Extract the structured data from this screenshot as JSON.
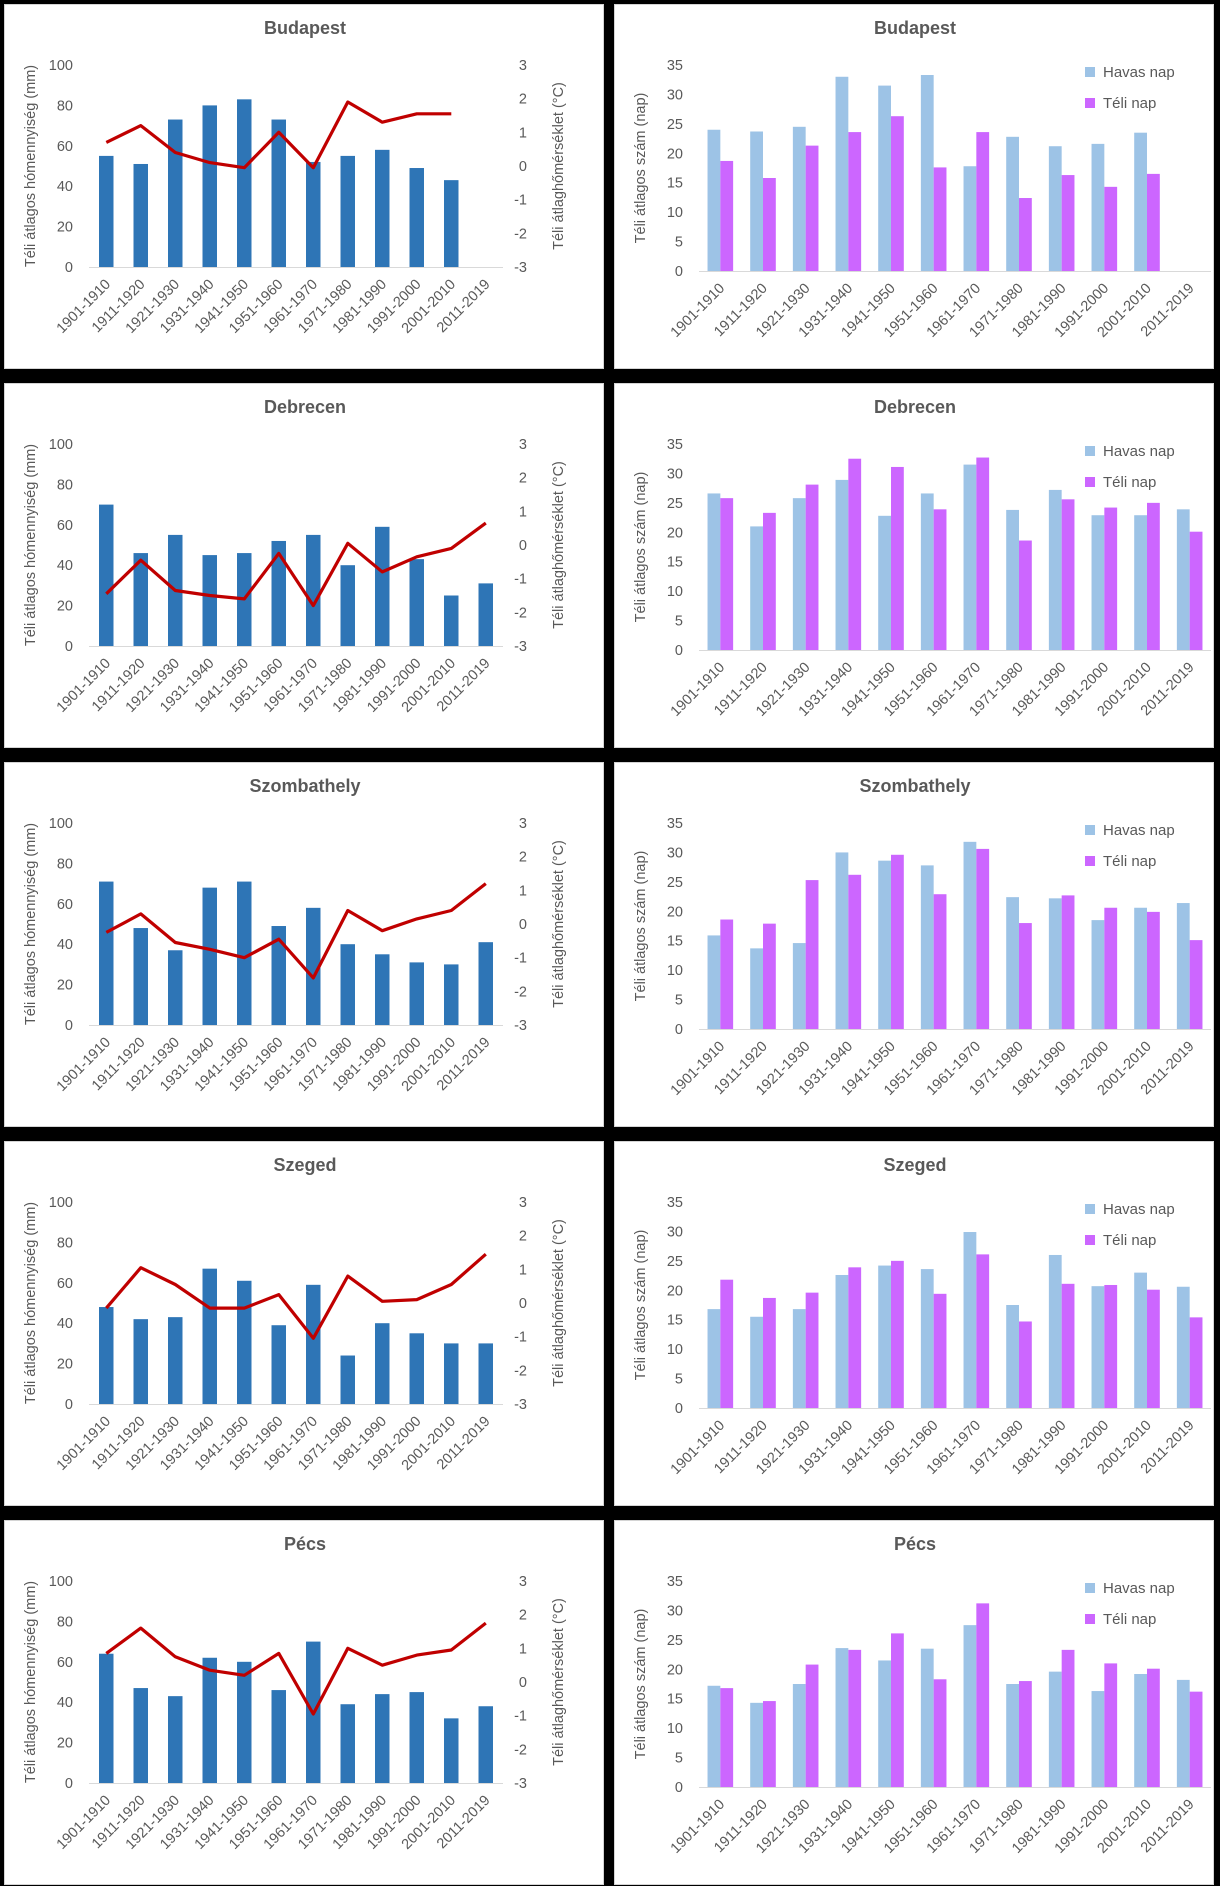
{
  "colors": {
    "snow_bar": "#2e75b6",
    "temp_line": "#c00000",
    "havas_bar": "#9dc3e6",
    "teli_bar": "#cc66ff",
    "text": "#595959",
    "axis": "#d9d9d9"
  },
  "chart_data": [
    {
      "type": "bar",
      "title": "Budapest",
      "categories": [
        "1901-1910",
        "1911-1920",
        "1921-1930",
        "1931-1940",
        "1941-1950",
        "1951-1960",
        "1961-1970",
        "1971-1980",
        "1981-1990",
        "1991-2000",
        "2001-2010",
        "2011-2019"
      ],
      "ylabel": "Téli átlagos hómennyiség (mm)",
      "y2label": "Téli átlaghőmérséklet (°C)",
      "ylim": [
        0,
        100
      ],
      "yticks": [
        "0",
        "20",
        "40",
        "60",
        "80",
        "100"
      ],
      "y2lim": [
        -3,
        3
      ],
      "y2ticks": [
        "-3",
        "-2",
        "-1",
        "0",
        "1",
        "2",
        "3"
      ],
      "series": [
        {
          "kind": "bar",
          "axis": "y",
          "values": [
            55,
            51,
            73,
            80,
            83,
            73,
            52,
            55,
            58,
            49,
            43,
            null
          ]
        },
        {
          "kind": "line",
          "axis": "y2",
          "values": [
            0.7,
            1.2,
            0.4,
            0.1,
            -0.05,
            1.0,
            -0.05,
            1.9,
            1.3,
            1.55,
            1.55,
            null
          ]
        }
      ]
    },
    {
      "type": "bar",
      "title": "Budapest",
      "categories": [
        "1901-1910",
        "1911-1920",
        "1921-1930",
        "1931-1940",
        "1941-1950",
        "1951-1960",
        "1961-1970",
        "1971-1980",
        "1981-1990",
        "1991-2000",
        "2001-2010",
        "2011-2019"
      ],
      "ylabel": "Téli átlagos szám (nap)",
      "ylim": [
        0,
        35
      ],
      "yticks": [
        "0",
        "5",
        "10",
        "15",
        "20",
        "25",
        "30",
        "35"
      ],
      "legend_position": "top-right",
      "series": [
        {
          "name": "Havas nap",
          "values": [
            24,
            23.7,
            24.5,
            33,
            31.5,
            33.3,
            17.8,
            22.8,
            21.2,
            21.6,
            23.5,
            null
          ]
        },
        {
          "name": "Téli nap",
          "values": [
            18.7,
            15.8,
            21.3,
            23.6,
            26.3,
            17.6,
            23.6,
            12.4,
            16.3,
            14.3,
            16.5,
            null
          ]
        }
      ]
    },
    {
      "type": "bar",
      "title": "Debrecen",
      "categories": [
        "1901-1910",
        "1911-1920",
        "1921-1930",
        "1931-1940",
        "1941-1950",
        "1951-1960",
        "1961-1970",
        "1971-1980",
        "1981-1990",
        "1991-2000",
        "2001-2010",
        "2011-2019"
      ],
      "ylabel": "Téli átlagos hómennyiség (mm)",
      "y2label": "Téli átlaghőmérséklet (°C)",
      "ylim": [
        0,
        100
      ],
      "yticks": [
        "0",
        "20",
        "40",
        "60",
        "80",
        "100"
      ],
      "y2lim": [
        -3,
        3
      ],
      "y2ticks": [
        "-3",
        "-2",
        "-1",
        "0",
        "1",
        "2",
        "3"
      ],
      "series": [
        {
          "kind": "bar",
          "axis": "y",
          "values": [
            70,
            46,
            55,
            45,
            46,
            52,
            55,
            40,
            59,
            43,
            25,
            31
          ]
        },
        {
          "kind": "line",
          "axis": "y2",
          "values": [
            -1.45,
            -0.45,
            -1.35,
            -1.5,
            -1.6,
            -0.25,
            -1.8,
            0.05,
            -0.8,
            -0.35,
            -0.1,
            0.65
          ]
        }
      ]
    },
    {
      "type": "bar",
      "title": "Debrecen",
      "categories": [
        "1901-1910",
        "1911-1920",
        "1921-1930",
        "1931-1940",
        "1941-1950",
        "1951-1960",
        "1961-1970",
        "1971-1980",
        "1981-1990",
        "1991-2000",
        "2001-2010",
        "2011-2019"
      ],
      "ylabel": "Téli átlagos szám (nap)",
      "ylim": [
        0,
        35
      ],
      "yticks": [
        "0",
        "5",
        "10",
        "15",
        "20",
        "25",
        "30",
        "35"
      ],
      "legend_position": "top-right",
      "series": [
        {
          "name": "Havas nap",
          "values": [
            26.6,
            21,
            25.8,
            28.9,
            22.8,
            26.6,
            31.5,
            23.8,
            27.2,
            22.9,
            22.9,
            23.9
          ]
        },
        {
          "name": "Téli nap",
          "values": [
            25.8,
            23.3,
            28.1,
            32.5,
            31.1,
            23.9,
            32.7,
            18.6,
            25.6,
            24.2,
            25,
            20.1
          ]
        }
      ]
    },
    {
      "type": "bar",
      "title": "Szombathely",
      "categories": [
        "1901-1910",
        "1911-1920",
        "1921-1930",
        "1931-1940",
        "1941-1950",
        "1951-1960",
        "1961-1970",
        "1971-1980",
        "1981-1990",
        "1991-2000",
        "2001-2010",
        "2011-2019"
      ],
      "ylabel": "Téli átlagos hómennyiség (mm)",
      "y2label": "Téli átlaghőmérséklet (°C)",
      "ylim": [
        0,
        100
      ],
      "yticks": [
        "0",
        "20",
        "40",
        "60",
        "80",
        "100"
      ],
      "y2lim": [
        -3,
        3
      ],
      "y2ticks": [
        "-3",
        "-2",
        "-1",
        "0",
        "1",
        "2",
        "3"
      ],
      "series": [
        {
          "kind": "bar",
          "axis": "y",
          "values": [
            71,
            48,
            37,
            68,
            71,
            49,
            58,
            40,
            35,
            31,
            30,
            41
          ]
        },
        {
          "kind": "line",
          "axis": "y2",
          "values": [
            -0.25,
            0.3,
            -0.55,
            -0.75,
            -1.0,
            -0.45,
            -1.6,
            0.4,
            -0.2,
            0.15,
            0.4,
            1.2
          ]
        }
      ]
    },
    {
      "type": "bar",
      "title": "Szombathely",
      "categories": [
        "1901-1910",
        "1911-1920",
        "1921-1930",
        "1931-1940",
        "1941-1950",
        "1951-1960",
        "1961-1970",
        "1971-1980",
        "1981-1990",
        "1991-2000",
        "2001-2010",
        "2011-2019"
      ],
      "ylabel": "Téli átlagos szám (nap)",
      "ylim": [
        0,
        35
      ],
      "yticks": [
        "0",
        "5",
        "10",
        "15",
        "20",
        "25",
        "30",
        "35"
      ],
      "legend_position": "top-right",
      "series": [
        {
          "name": "Havas nap",
          "values": [
            15.9,
            13.7,
            14.6,
            30,
            28.6,
            27.8,
            31.8,
            22.4,
            22.2,
            18.5,
            20.6,
            21.4
          ]
        },
        {
          "name": "Téli nap",
          "values": [
            18.6,
            17.9,
            25.3,
            26.2,
            29.6,
            22.9,
            30.6,
            18,
            22.7,
            20.6,
            19.9,
            15.1
          ]
        }
      ]
    },
    {
      "type": "bar",
      "title": "Szeged",
      "categories": [
        "1901-1910",
        "1911-1920",
        "1921-1930",
        "1931-1940",
        "1941-1950",
        "1951-1960",
        "1961-1970",
        "1971-1980",
        "1981-1990",
        "1991-2000",
        "2001-2010",
        "2011-2019"
      ],
      "ylabel": "Téli átlagos hómennyiség (mm)",
      "y2label": "Téli átlaghőmérséklet (°C)",
      "ylim": [
        0,
        100
      ],
      "yticks": [
        "0",
        "20",
        "40",
        "60",
        "80",
        "100"
      ],
      "y2lim": [
        -3,
        3
      ],
      "y2ticks": [
        "-3",
        "-2",
        "-1",
        "0",
        "1",
        "2",
        "3"
      ],
      "series": [
        {
          "kind": "bar",
          "axis": "y",
          "values": [
            48,
            42,
            43,
            67,
            61,
            39,
            59,
            24,
            40,
            35,
            30,
            30
          ]
        },
        {
          "kind": "line",
          "axis": "y2",
          "values": [
            -0.15,
            1.05,
            0.55,
            -0.15,
            -0.15,
            0.25,
            -1.05,
            0.8,
            0.05,
            0.1,
            0.55,
            1.45
          ]
        }
      ]
    },
    {
      "type": "bar",
      "title": "Szeged",
      "categories": [
        "1901-1910",
        "1911-1920",
        "1921-1930",
        "1931-1940",
        "1941-1950",
        "1951-1960",
        "1961-1970",
        "1971-1980",
        "1981-1990",
        "1991-2000",
        "2001-2010",
        "2011-2019"
      ],
      "ylabel": "Téli átlagos szám (nap)",
      "ylim": [
        0,
        35
      ],
      "yticks": [
        "0",
        "5",
        "10",
        "15",
        "20",
        "25",
        "30",
        "35"
      ],
      "legend_position": "top-right",
      "series": [
        {
          "name": "Havas nap",
          "values": [
            16.8,
            15.5,
            16.8,
            22.6,
            24.2,
            23.6,
            29.9,
            17.5,
            26,
            20.7,
            23,
            20.6
          ]
        },
        {
          "name": "Téli nap",
          "values": [
            21.8,
            18.7,
            19.6,
            23.9,
            25,
            19.4,
            26.1,
            14.7,
            21.1,
            20.9,
            20.1,
            15.4
          ]
        }
      ]
    },
    {
      "type": "bar",
      "title": "Pécs",
      "categories": [
        "1901-1910",
        "1911-1920",
        "1921-1930",
        "1931-1940",
        "1941-1950",
        "1951-1960",
        "1961-1970",
        "1971-1980",
        "1981-1990",
        "1991-2000",
        "2001-2010",
        "2011-2019"
      ],
      "ylabel": "Téli átlagos hómennyiség (mm)",
      "y2label": "Téli átlaghőmérséklet (°C)",
      "ylim": [
        0,
        100
      ],
      "yticks": [
        "0",
        "20",
        "40",
        "60",
        "80",
        "100"
      ],
      "y2lim": [
        -3,
        3
      ],
      "y2ticks": [
        "-3",
        "-2",
        "-1",
        "0",
        "1",
        "2",
        "3"
      ],
      "series": [
        {
          "kind": "bar",
          "axis": "y",
          "values": [
            64,
            47,
            43,
            62,
            60,
            46,
            70,
            39,
            44,
            45,
            32,
            38
          ]
        },
        {
          "kind": "line",
          "axis": "y2",
          "values": [
            0.85,
            1.6,
            0.75,
            0.35,
            0.2,
            0.85,
            -0.95,
            1.0,
            0.5,
            0.8,
            0.95,
            1.75
          ]
        }
      ]
    },
    {
      "type": "bar",
      "title": "Pécs",
      "categories": [
        "1901-1910",
        "1911-1920",
        "1921-1930",
        "1931-1940",
        "1941-1950",
        "1951-1960",
        "1961-1970",
        "1971-1980",
        "1981-1990",
        "1991-2000",
        "2001-2010",
        "2011-2019"
      ],
      "ylabel": "Téli átlagos szám (nap)",
      "ylim": [
        0,
        35
      ],
      "yticks": [
        "0",
        "5",
        "10",
        "15",
        "20",
        "25",
        "30",
        "35"
      ],
      "legend_position": "top-right",
      "series": [
        {
          "name": "Havas nap",
          "values": [
            17.2,
            14.3,
            17.5,
            23.6,
            21.5,
            23.5,
            27.5,
            17.5,
            19.6,
            16.3,
            19.2,
            18.2
          ]
        },
        {
          "name": "Téli nap",
          "values": [
            16.8,
            14.6,
            20.8,
            23.3,
            26.1,
            18.3,
            31.2,
            18,
            23.3,
            21,
            20.1,
            16.2
          ]
        }
      ]
    }
  ]
}
